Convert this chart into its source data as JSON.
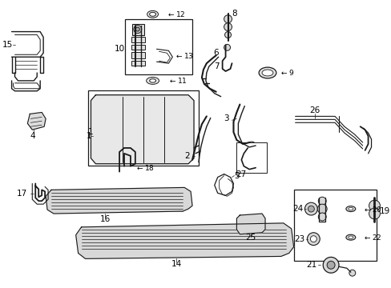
{
  "background_color": "#ffffff",
  "line_color": "#1a1a1a",
  "fig_width": 4.89,
  "fig_height": 3.6,
  "dpi": 100,
  "font_size": 7.5,
  "label_color": "#000000"
}
